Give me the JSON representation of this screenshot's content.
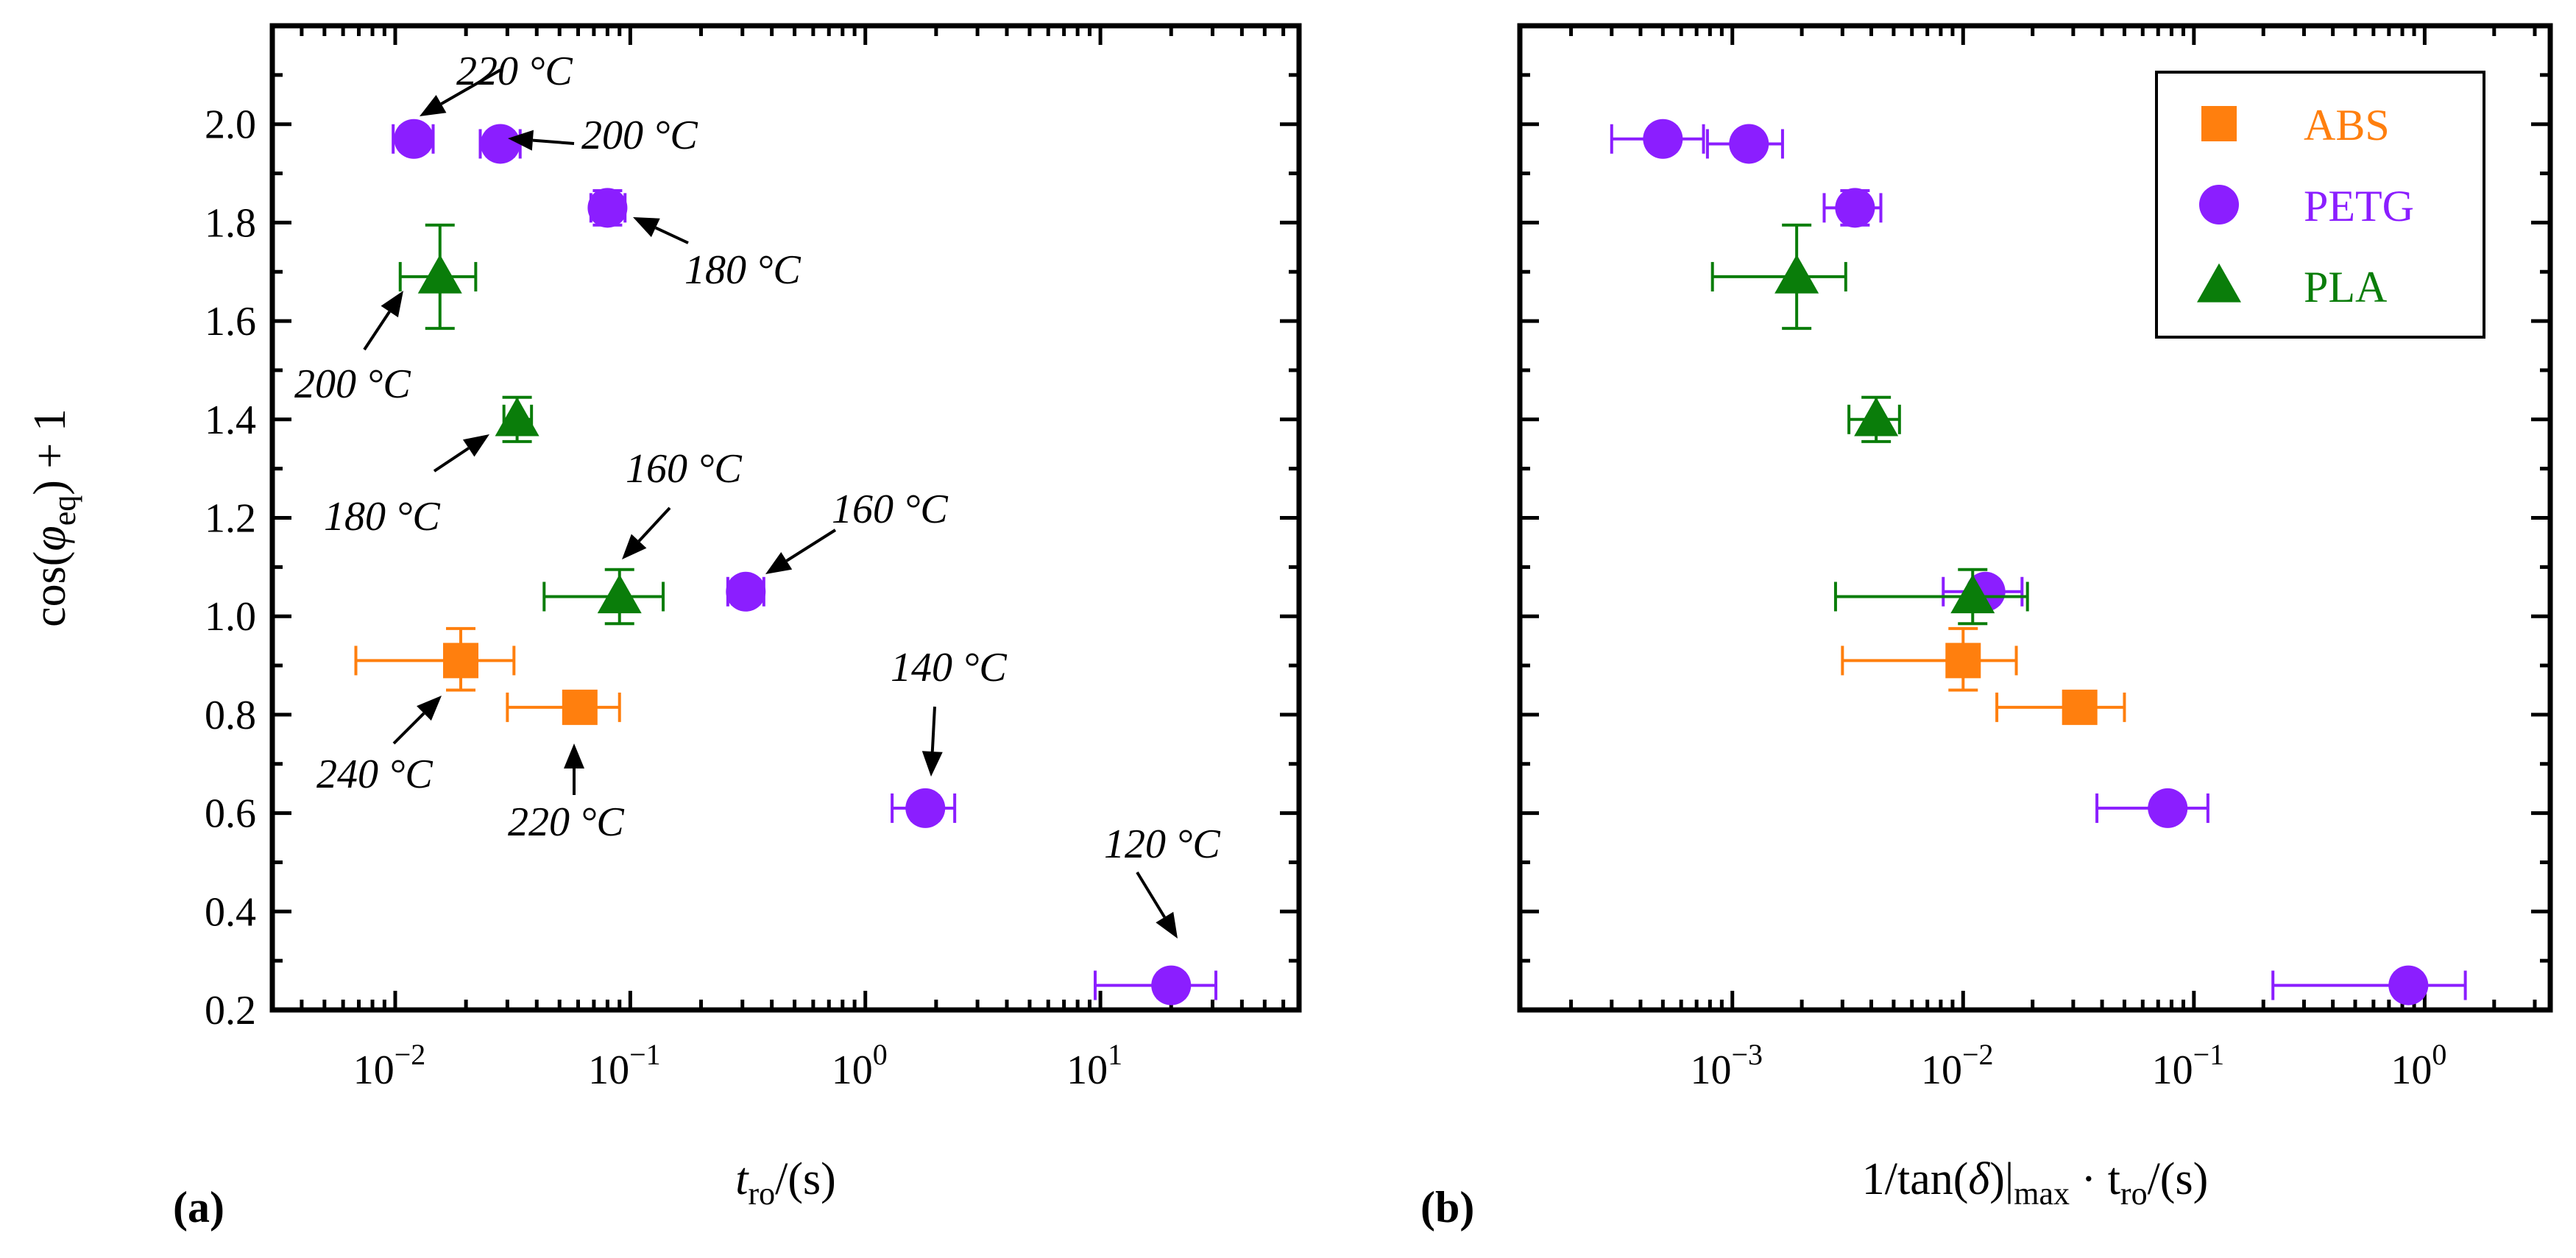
{
  "colors": {
    "ABS": "#ff7f0e",
    "PETG": "#8b1eff",
    "PLA": "#0a7d0a",
    "arrow": "#000000"
  },
  "chart_data": [
    {
      "type": "scatter",
      "panel_label": "(a)",
      "xscale": "log",
      "xlim": [
        0.003,
        70
      ],
      "ylim": [
        0.2,
        2.2
      ],
      "xticks": [
        {
          "exp": -2,
          "label": "10",
          "sup": "−2"
        },
        {
          "exp": -1,
          "label": "10",
          "sup": "−1"
        },
        {
          "exp": 0,
          "label": "10",
          "sup": "0"
        },
        {
          "exp": 1,
          "label": "10",
          "sup": "1"
        }
      ],
      "yticks": [
        "0.2",
        "0.4",
        "0.6",
        "0.8",
        "1.0",
        "1.2",
        "1.4",
        "1.6",
        "1.8",
        "2.0"
      ],
      "xlabel": {
        "main": "t",
        "sub": "ro",
        "tail": "/(s)"
      },
      "ylabel": {
        "pre": "cos(",
        "sym": "φ",
        "sub": "eq",
        "post": ") + 1"
      },
      "series": [
        {
          "name": "ABS",
          "marker": "square",
          "points": [
            {
              "x": 0.019,
              "y": 0.91,
              "xlo": 0.0068,
              "xhi": 0.032,
              "ylo": 0.85,
              "yhi": 0.975
            },
            {
              "x": 0.061,
              "y": 0.815,
              "xlo": 0.03,
              "xhi": 0.09,
              "ylo": 0.79,
              "yhi": 0.84
            }
          ]
        },
        {
          "name": "PETG",
          "marker": "circle",
          "points": [
            {
              "x": 0.012,
              "y": 1.97,
              "xlo": 0.0098,
              "xhi": 0.0145,
              "ylo": 1.945,
              "yhi": 1.995
            },
            {
              "x": 0.028,
              "y": 1.96,
              "xlo": 0.023,
              "xhi": 0.034,
              "ylo": 1.935,
              "yhi": 1.985
            },
            {
              "x": 0.08,
              "y": 1.83,
              "xlo": 0.068,
              "xhi": 0.095,
              "ylo": 1.795,
              "yhi": 1.865
            },
            {
              "x": 0.31,
              "y": 1.05,
              "xlo": 0.26,
              "xhi": 0.37,
              "ylo": 1.025,
              "yhi": 1.075
            },
            {
              "x": 1.8,
              "y": 0.61,
              "xlo": 1.3,
              "xhi": 2.4,
              "ylo": 0.585,
              "yhi": 0.635
            },
            {
              "x": 20,
              "y": 0.25,
              "xlo": 9.5,
              "xhi": 31,
              "ylo": 0.225,
              "yhi": 0.275
            }
          ]
        },
        {
          "name": "PLA",
          "marker": "triangle",
          "points": [
            {
              "x": 0.0155,
              "y": 1.69,
              "xlo": 0.0105,
              "xhi": 0.022,
              "ylo": 1.585,
              "yhi": 1.795
            },
            {
              "x": 0.033,
              "y": 1.4,
              "xlo": 0.029,
              "xhi": 0.038,
              "ylo": 1.355,
              "yhi": 1.445
            },
            {
              "x": 0.09,
              "y": 1.04,
              "xlo": 0.043,
              "xhi": 0.138,
              "ylo": 0.985,
              "yhi": 1.095
            }
          ]
        }
      ],
      "annotations": [
        {
          "text": "220 °C",
          "x": 0.012,
          "y": 1.97
        },
        {
          "text": "200 °C",
          "x": 0.028,
          "y": 1.96
        },
        {
          "text": "180 °C",
          "x": 0.08,
          "y": 1.83
        },
        {
          "text": "200 °C",
          "x": 0.0155,
          "y": 1.69
        },
        {
          "text": "180 °C",
          "x": 0.033,
          "y": 1.4
        },
        {
          "text": "160 °C",
          "x": 0.09,
          "y": 1.04
        },
        {
          "text": "160 °C",
          "x": 0.31,
          "y": 1.05
        },
        {
          "text": "240 °C",
          "x": 0.019,
          "y": 0.91
        },
        {
          "text": "220 °C",
          "x": 0.061,
          "y": 0.815
        },
        {
          "text": "140 °C",
          "x": 1.8,
          "y": 0.61
        },
        {
          "text": "120 °C",
          "x": 20,
          "y": 0.25
        }
      ]
    },
    {
      "type": "scatter",
      "panel_label": "(b)",
      "xscale": "log",
      "xlim": [
        0.00012,
        3.5
      ],
      "ylim": [
        0.2,
        2.2
      ],
      "xticks": [
        {
          "exp": -3,
          "label": "10",
          "sup": "−3"
        },
        {
          "exp": -2,
          "label": "10",
          "sup": "−2"
        },
        {
          "exp": -1,
          "label": "10",
          "sup": "−1"
        },
        {
          "exp": 0,
          "label": "10",
          "sup": "0"
        }
      ],
      "yticks": [
        "0.2",
        "0.4",
        "0.6",
        "0.8",
        "1.0",
        "1.2",
        "1.4",
        "1.6",
        "1.8",
        "2.0"
      ],
      "xlabel": {
        "pre": "1/tan(",
        "sym": "δ",
        "mid": ")|",
        "sub1": "max",
        "dot": " · t",
        "sub2": "ro",
        "tail": "/(s)"
      },
      "legend": {
        "position": "top-right",
        "entries": [
          "ABS",
          "PETG",
          "PLA"
        ]
      },
      "series": [
        {
          "name": "ABS",
          "marker": "square",
          "points": [
            {
              "x": 0.01,
              "y": 0.91,
              "xlo": 0.003,
              "xhi": 0.017,
              "ylo": 0.85,
              "yhi": 0.975
            },
            {
              "x": 0.032,
              "y": 0.815,
              "xlo": 0.014,
              "xhi": 0.05,
              "ylo": 0.79,
              "yhi": 0.84
            }
          ]
        },
        {
          "name": "PETG",
          "marker": "circle",
          "points": [
            {
              "x": 0.0005,
              "y": 1.97,
              "xlo": 0.0003,
              "xhi": 0.00075,
              "ylo": 1.945,
              "yhi": 1.995
            },
            {
              "x": 0.00118,
              "y": 1.96,
              "xlo": 0.00078,
              "xhi": 0.00165,
              "ylo": 1.935,
              "yhi": 1.985
            },
            {
              "x": 0.0034,
              "y": 1.83,
              "xlo": 0.0025,
              "xhi": 0.0044,
              "ylo": 1.795,
              "yhi": 1.865
            },
            {
              "x": 0.0125,
              "y": 1.05,
              "xlo": 0.0082,
              "xhi": 0.018,
              "ylo": 1.025,
              "yhi": 1.075
            },
            {
              "x": 0.077,
              "y": 0.61,
              "xlo": 0.038,
              "xhi": 0.115,
              "ylo": 0.585,
              "yhi": 0.635
            },
            {
              "x": 0.85,
              "y": 0.25,
              "xlo": 0.22,
              "xhi": 1.5,
              "ylo": 0.225,
              "yhi": 0.275
            }
          ]
        },
        {
          "name": "PLA",
          "marker": "triangle",
          "points": [
            {
              "x": 0.0019,
              "y": 1.69,
              "xlo": 0.00082,
              "xhi": 0.0031,
              "ylo": 1.585,
              "yhi": 1.795
            },
            {
              "x": 0.0042,
              "y": 1.4,
              "xlo": 0.0032,
              "xhi": 0.0053,
              "ylo": 1.355,
              "yhi": 1.445
            },
            {
              "x": 0.011,
              "y": 1.04,
              "xlo": 0.0028,
              "xhi": 0.019,
              "ylo": 0.985,
              "yhi": 1.095
            }
          ]
        }
      ]
    }
  ]
}
